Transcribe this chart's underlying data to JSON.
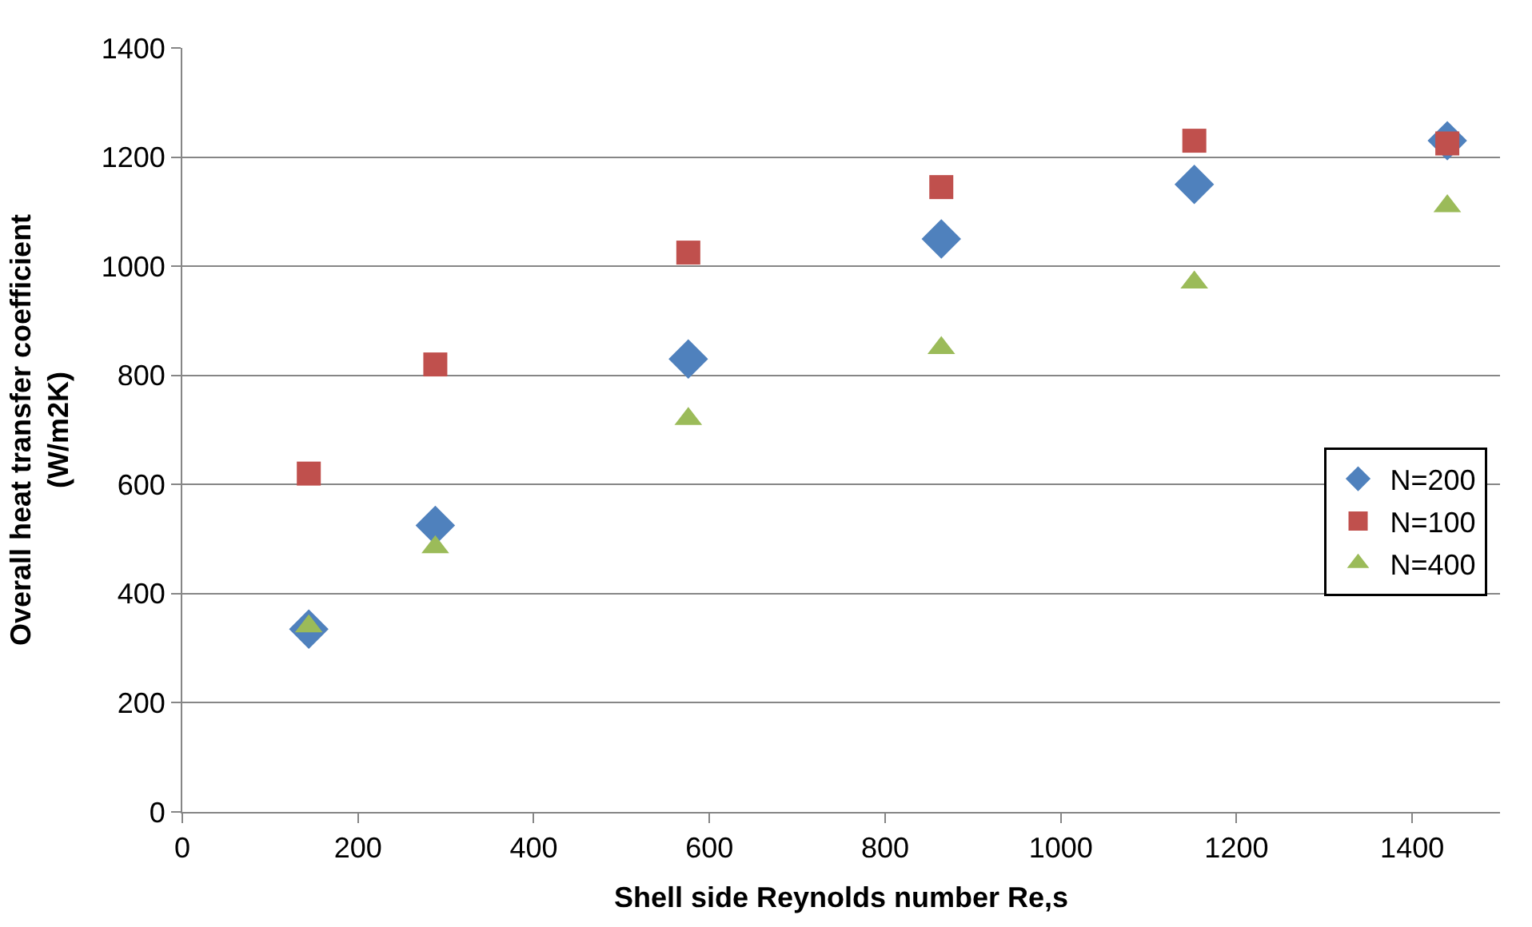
{
  "chart_data": {
    "type": "scatter",
    "xlabel": "Shell side Reynolds number Re,s",
    "ylabel": "Overall heat transfer coefficient\n(W/m2K)",
    "x": [
      144,
      288,
      576,
      864,
      1152,
      1440
    ],
    "series": [
      {
        "name": "N=200",
        "color": "#4f81bd",
        "marker": "diamond",
        "values": [
          335,
          525,
          830,
          1050,
          1150,
          1230
        ]
      },
      {
        "name": "N=100",
        "color": "#c0504d",
        "marker": "square",
        "values": [
          620,
          820,
          1025,
          1145,
          1230,
          1225
        ]
      },
      {
        "name": "N=400",
        "color": "#9bbb59",
        "marker": "triangle",
        "values": [
          340,
          485,
          720,
          850,
          970,
          1110
        ]
      }
    ],
    "xlim": [
      0,
      1500
    ],
    "xticks": [
      0,
      200,
      400,
      600,
      800,
      1000,
      1200,
      1400
    ],
    "ylim": [
      0,
      1400
    ],
    "yticks": [
      0,
      200,
      400,
      600,
      800,
      1000,
      1200,
      1400
    ],
    "grid": "y",
    "legend": "right"
  }
}
